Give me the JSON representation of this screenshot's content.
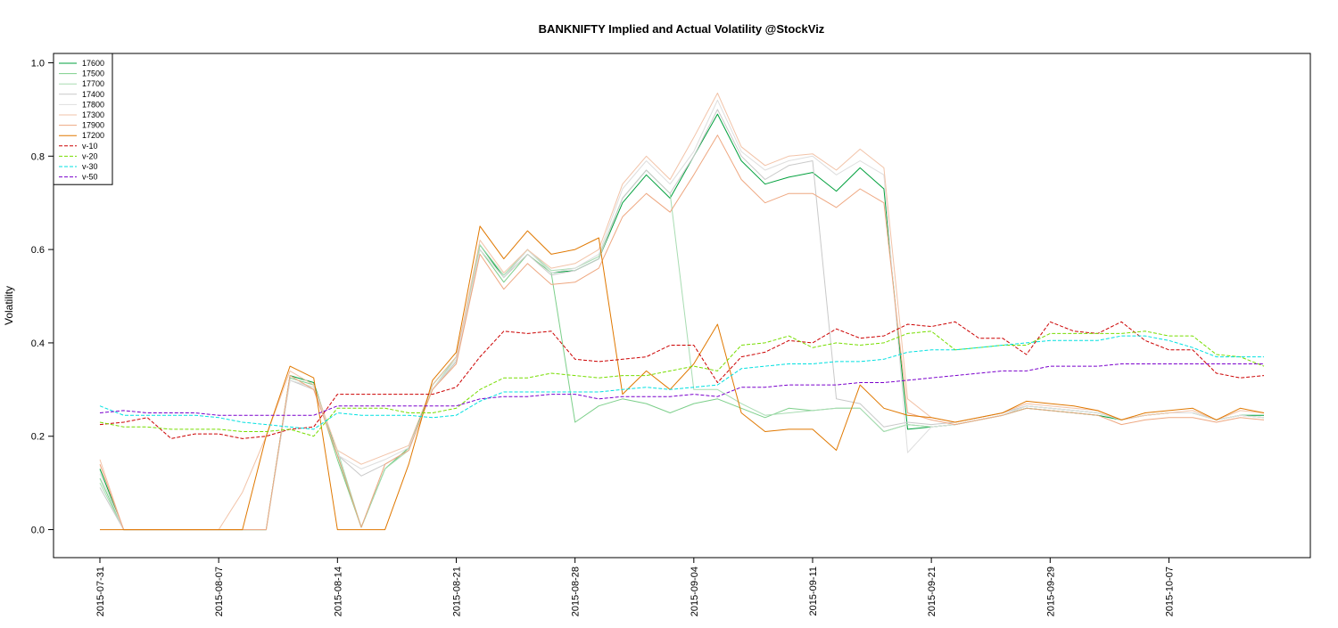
{
  "chart_data": {
    "type": "line",
    "title": "BANKNIFTY Implied and Actual Volatility @StockViz",
    "xlabel": "",
    "ylabel": "Volatility",
    "ylim": [
      -0.06,
      1.02
    ],
    "yticks": [
      "0.0",
      "0.2",
      "0.4",
      "0.6",
      "0.8",
      "1.0"
    ],
    "ytick_values": [
      0.0,
      0.2,
      0.4,
      0.6,
      0.8,
      1.0
    ],
    "x": [
      "2015-07-31",
      "2015-08-03",
      "2015-08-04",
      "2015-08-05",
      "2015-08-06",
      "2015-08-07",
      "2015-08-10",
      "2015-08-11",
      "2015-08-12",
      "2015-08-13",
      "2015-08-14",
      "2015-08-17",
      "2015-08-18",
      "2015-08-19",
      "2015-08-20",
      "2015-08-21",
      "2015-08-24",
      "2015-08-25",
      "2015-08-26",
      "2015-08-27",
      "2015-08-28",
      "2015-08-31",
      "2015-09-01",
      "2015-09-02",
      "2015-09-03",
      "2015-09-04",
      "2015-09-07",
      "2015-09-08",
      "2015-09-09",
      "2015-09-10",
      "2015-09-11",
      "2015-09-14",
      "2015-09-15",
      "2015-09-16",
      "2015-09-18",
      "2015-09-21",
      "2015-09-22",
      "2015-09-23",
      "2015-09-24",
      "2015-09-28",
      "2015-09-29",
      "2015-09-30",
      "2015-10-01",
      "2015-10-05",
      "2015-10-06",
      "2015-10-07",
      "2015-10-08",
      "2015-10-09",
      "2015-10-12",
      "2015-10-13"
    ],
    "xtick_labels": [
      "2015-07-31",
      "2015-08-07",
      "2015-08-14",
      "2015-08-21",
      "2015-08-28",
      "2015-09-04",
      "2015-09-11",
      "2015-09-21",
      "2015-09-29",
      "2015-10-07"
    ],
    "xtick_index": [
      0,
      5,
      10,
      15,
      20,
      25,
      30,
      35,
      40,
      45
    ],
    "grid": false,
    "legend_position": "top-left",
    "series": [
      {
        "name": "17600",
        "color": "#00a03c",
        "dash": "solid",
        "values": [
          0.13,
          0.0,
          0.0,
          0.0,
          0.0,
          0.0,
          0.0,
          0.0,
          0.33,
          0.315,
          0.16,
          0.005,
          0.13,
          0.175,
          0.31,
          0.37,
          0.61,
          0.54,
          0.6,
          0.55,
          0.555,
          0.58,
          0.7,
          0.76,
          0.71,
          0.8,
          0.89,
          0.79,
          0.74,
          0.755,
          0.765,
          0.725,
          0.775,
          0.73,
          0.215,
          0.22,
          0.225,
          0.235,
          0.245,
          0.26,
          0.255,
          0.25,
          0.245,
          0.235,
          0.245,
          0.25,
          0.25,
          0.235,
          0.245,
          0.245
        ]
      },
      {
        "name": "17500",
        "color": "#7ccf8a",
        "dash": "solid",
        "values": [
          0.11,
          0.0,
          0.0,
          0.0,
          0.0,
          0.0,
          0.0,
          0.0,
          0.325,
          0.31,
          0.15,
          0.005,
          0.13,
          0.175,
          0.3,
          0.36,
          0.6,
          0.53,
          0.59,
          0.55,
          0.23,
          0.265,
          0.28,
          0.27,
          0.25,
          0.27,
          0.28,
          0.26,
          0.24,
          0.26,
          0.255,
          0.26,
          0.26,
          0.21,
          0.225,
          0.22,
          0.225,
          0.235,
          0.245,
          0.265,
          0.26,
          0.255,
          0.25,
          0.235,
          0.245,
          0.25,
          0.25,
          0.235,
          0.245,
          0.24
        ]
      },
      {
        "name": "17700",
        "color": "#a8dcb2",
        "dash": "solid",
        "values": [
          0.1,
          0.0,
          0.0,
          0.0,
          0.0,
          0.0,
          0.0,
          0.0,
          0.32,
          0.305,
          0.17,
          0.005,
          0.13,
          0.17,
          0.3,
          0.37,
          0.61,
          0.545,
          0.6,
          0.555,
          0.56,
          0.585,
          0.71,
          0.77,
          0.72,
          0.3,
          0.3,
          0.27,
          0.245,
          0.25,
          0.255,
          0.26,
          0.26,
          0.21,
          0.225,
          0.22,
          0.225,
          0.235,
          0.245,
          0.265,
          0.26,
          0.255,
          0.25,
          0.235,
          0.245,
          0.25,
          0.25,
          0.235,
          0.245,
          0.24
        ]
      },
      {
        "name": "17400",
        "color": "#c9c9c9",
        "dash": "solid",
        "values": [
          0.09,
          0.0,
          0.0,
          0.0,
          0.0,
          0.0,
          0.0,
          0.0,
          0.32,
          0.3,
          0.16,
          0.115,
          0.14,
          0.17,
          0.3,
          0.36,
          0.6,
          0.54,
          0.59,
          0.545,
          0.555,
          0.58,
          0.71,
          0.77,
          0.72,
          0.8,
          0.9,
          0.8,
          0.75,
          0.78,
          0.79,
          0.28,
          0.27,
          0.22,
          0.23,
          0.225,
          0.23,
          0.24,
          0.25,
          0.265,
          0.26,
          0.255,
          0.25,
          0.235,
          0.245,
          0.25,
          0.25,
          0.235,
          0.245,
          0.24
        ]
      },
      {
        "name": "17800",
        "color": "#dedede",
        "dash": "solid",
        "values": [
          0.12,
          0.0,
          0.0,
          0.0,
          0.0,
          0.0,
          0.0,
          0.0,
          0.32,
          0.305,
          0.16,
          0.13,
          0.15,
          0.175,
          0.3,
          0.365,
          0.6,
          0.54,
          0.6,
          0.55,
          0.56,
          0.59,
          0.73,
          0.79,
          0.74,
          0.81,
          0.92,
          0.81,
          0.77,
          0.79,
          0.8,
          0.76,
          0.79,
          0.76,
          0.165,
          0.22,
          0.225,
          0.235,
          0.245,
          0.265,
          0.26,
          0.255,
          0.25,
          0.235,
          0.245,
          0.25,
          0.25,
          0.235,
          0.245,
          0.24
        ]
      },
      {
        "name": "17300",
        "color": "#f2c3a8",
        "dash": "solid",
        "values": [
          0.15,
          0.0,
          0.0,
          0.0,
          0.0,
          0.0,
          0.08,
          0.2,
          0.34,
          0.31,
          0.17,
          0.14,
          0.16,
          0.18,
          0.31,
          0.37,
          0.62,
          0.55,
          0.6,
          0.56,
          0.57,
          0.6,
          0.74,
          0.8,
          0.75,
          0.84,
          0.935,
          0.82,
          0.78,
          0.8,
          0.805,
          0.77,
          0.815,
          0.775,
          0.28,
          0.24,
          0.23,
          0.24,
          0.25,
          0.27,
          0.265,
          0.26,
          0.255,
          0.235,
          0.245,
          0.25,
          0.255,
          0.235,
          0.255,
          0.25
        ]
      },
      {
        "name": "17900",
        "color": "#eea780",
        "dash": "solid",
        "values": [
          0.14,
          0.0,
          0.0,
          0.0,
          0.0,
          0.0,
          0.0,
          0.0,
          0.33,
          0.3,
          0.16,
          0.005,
          0.14,
          0.17,
          0.3,
          0.355,
          0.59,
          0.515,
          0.57,
          0.525,
          0.53,
          0.56,
          0.67,
          0.72,
          0.68,
          0.76,
          0.845,
          0.75,
          0.7,
          0.72,
          0.72,
          0.69,
          0.73,
          0.7,
          0.25,
          0.235,
          0.225,
          0.235,
          0.245,
          0.26,
          0.255,
          0.25,
          0.245,
          0.225,
          0.235,
          0.24,
          0.24,
          0.23,
          0.24,
          0.235
        ]
      },
      {
        "name": "17200",
        "color": "#e07800",
        "dash": "solid",
        "values": [
          0.0,
          0.0,
          0.0,
          0.0,
          0.0,
          0.0,
          0.0,
          0.2,
          0.35,
          0.325,
          0.0,
          0.0,
          0.0,
          0.14,
          0.32,
          0.38,
          0.65,
          0.58,
          0.64,
          0.59,
          0.6,
          0.625,
          0.29,
          0.34,
          0.3,
          0.355,
          0.44,
          0.25,
          0.21,
          0.215,
          0.215,
          0.17,
          0.31,
          0.26,
          0.245,
          0.24,
          0.23,
          0.24,
          0.25,
          0.275,
          0.27,
          0.265,
          0.255,
          0.235,
          0.25,
          0.255,
          0.26,
          0.235,
          0.26,
          0.25
        ]
      },
      {
        "name": "v-10",
        "color": "#cc0000",
        "dash": "4,2",
        "values": [
          0.225,
          0.23,
          0.24,
          0.195,
          0.205,
          0.205,
          0.195,
          0.2,
          0.215,
          0.22,
          0.29,
          0.29,
          0.29,
          0.29,
          0.29,
          0.305,
          0.37,
          0.425,
          0.42,
          0.425,
          0.365,
          0.36,
          0.365,
          0.37,
          0.395,
          0.395,
          0.315,
          0.37,
          0.38,
          0.405,
          0.4,
          0.43,
          0.41,
          0.415,
          0.44,
          0.435,
          0.445,
          0.41,
          0.41,
          0.375,
          0.445,
          0.425,
          0.42,
          0.445,
          0.405,
          0.385,
          0.385,
          0.335,
          0.325,
          0.33
        ]
      },
      {
        "name": "v-20",
        "color": "#77dd00",
        "dash": "4,2",
        "values": [
          0.23,
          0.22,
          0.22,
          0.215,
          0.215,
          0.215,
          0.21,
          0.21,
          0.215,
          0.2,
          0.26,
          0.26,
          0.26,
          0.25,
          0.25,
          0.26,
          0.3,
          0.325,
          0.325,
          0.335,
          0.33,
          0.325,
          0.33,
          0.33,
          0.34,
          0.35,
          0.34,
          0.395,
          0.4,
          0.415,
          0.39,
          0.4,
          0.395,
          0.4,
          0.42,
          0.425,
          0.385,
          0.39,
          0.395,
          0.395,
          0.42,
          0.42,
          0.42,
          0.42,
          0.425,
          0.415,
          0.415,
          0.375,
          0.37,
          0.35
        ]
      },
      {
        "name": "v-30",
        "color": "#00e0e0",
        "dash": "4,2",
        "values": [
          0.265,
          0.245,
          0.245,
          0.245,
          0.245,
          0.24,
          0.23,
          0.225,
          0.22,
          0.215,
          0.25,
          0.245,
          0.245,
          0.245,
          0.24,
          0.245,
          0.275,
          0.295,
          0.295,
          0.295,
          0.295,
          0.295,
          0.3,
          0.305,
          0.3,
          0.305,
          0.31,
          0.345,
          0.35,
          0.355,
          0.355,
          0.36,
          0.36,
          0.365,
          0.38,
          0.385,
          0.385,
          0.39,
          0.395,
          0.4,
          0.405,
          0.405,
          0.405,
          0.415,
          0.415,
          0.405,
          0.39,
          0.37,
          0.37,
          0.37
        ]
      },
      {
        "name": "v-50",
        "color": "#7a00cc",
        "dash": "4,2",
        "values": [
          0.25,
          0.255,
          0.25,
          0.25,
          0.25,
          0.245,
          0.245,
          0.245,
          0.245,
          0.245,
          0.265,
          0.265,
          0.265,
          0.265,
          0.265,
          0.265,
          0.28,
          0.285,
          0.285,
          0.29,
          0.29,
          0.28,
          0.285,
          0.285,
          0.285,
          0.29,
          0.285,
          0.305,
          0.305,
          0.31,
          0.31,
          0.31,
          0.315,
          0.315,
          0.32,
          0.325,
          0.33,
          0.335,
          0.34,
          0.34,
          0.35,
          0.35,
          0.35,
          0.355,
          0.355,
          0.355,
          0.355,
          0.355,
          0.355,
          0.355
        ]
      }
    ]
  }
}
